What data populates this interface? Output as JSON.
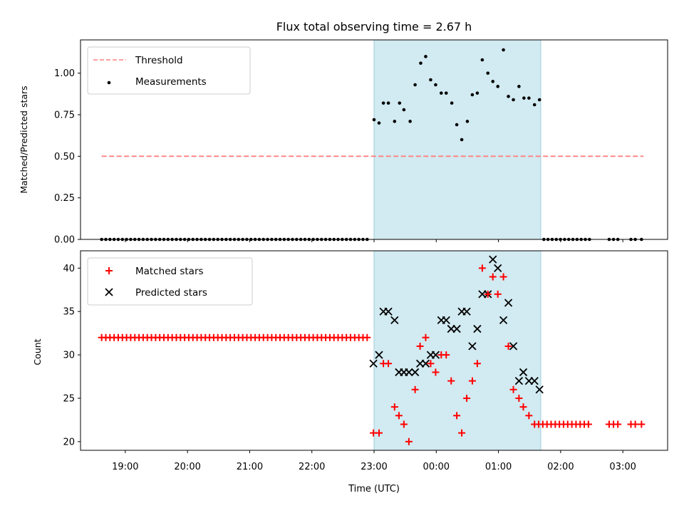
{
  "chart_data": [
    {
      "type": "scatter",
      "title": "Flux total observing time = 2.67 h",
      "ylabel": "Matched/Predicted stars",
      "xlabel": "",
      "x_unit": "hours since 18:00 UTC",
      "xlim": [
        0.28,
        9.72
      ],
      "ylim": [
        0,
        1.2
      ],
      "yticks": [
        0,
        0.25,
        0.5,
        0.75,
        1.0
      ],
      "ytick_labels": [
        "0.00",
        "0.25",
        "0.50",
        "0.75",
        "1.00"
      ],
      "shaded_region": {
        "x_start": 5.0,
        "x_end": 7.68,
        "color": "#add8e6"
      },
      "legend": {
        "placement": "top-left",
        "entries": [
          "Threshold",
          "Measurements"
        ]
      },
      "threshold": {
        "name": "Threshold",
        "y": 0.5,
        "x_start": 0.62,
        "x_end": 9.33,
        "color": "#ff8080"
      },
      "series": [
        {
          "name": "Measurements",
          "marker": "dot",
          "color": "#000000",
          "zero_runs": [
            {
              "x_start": 0.62,
              "x_end": 4.95,
              "step": 0.0667
            },
            {
              "x_start": 7.73,
              "x_end": 8.5,
              "step": 0.0667
            }
          ],
          "x_zero_extra": [
            8.78,
            8.85,
            8.92,
            9.13,
            9.2,
            9.3
          ],
          "points": [
            [
              5.0,
              0.72
            ],
            [
              5.08,
              0.7
            ],
            [
              5.15,
              0.82
            ],
            [
              5.23,
              0.82
            ],
            [
              5.33,
              0.71
            ],
            [
              5.41,
              0.82
            ],
            [
              5.48,
              0.78
            ],
            [
              5.58,
              0.71
            ],
            [
              5.66,
              0.93
            ],
            [
              5.75,
              1.06
            ],
            [
              5.83,
              1.1
            ],
            [
              5.91,
              0.96
            ],
            [
              5.99,
              0.93
            ],
            [
              6.08,
              0.88
            ],
            [
              6.16,
              0.88
            ],
            [
              6.25,
              0.82
            ],
            [
              6.33,
              0.69
            ],
            [
              6.41,
              0.6
            ],
            [
              6.5,
              0.71
            ],
            [
              6.58,
              0.87
            ],
            [
              6.66,
              0.88
            ],
            [
              6.74,
              1.08
            ],
            [
              6.83,
              1.0
            ],
            [
              6.91,
              0.95
            ],
            [
              6.99,
              0.92
            ],
            [
              7.08,
              1.14
            ],
            [
              7.16,
              0.86
            ],
            [
              7.24,
              0.84
            ],
            [
              7.33,
              0.92
            ],
            [
              7.41,
              0.85
            ],
            [
              7.49,
              0.85
            ],
            [
              7.58,
              0.81
            ],
            [
              7.66,
              0.84
            ]
          ]
        }
      ]
    },
    {
      "type": "scatter",
      "title": "",
      "ylabel": "Count",
      "xlabel": "Time (UTC)",
      "x_unit": "hours since 18:00 UTC",
      "xlim": [
        0.28,
        9.72
      ],
      "ylim": [
        19,
        42
      ],
      "yticks": [
        20,
        25,
        30,
        35,
        40
      ],
      "xticks": [
        1,
        2,
        3,
        4,
        5,
        6,
        7,
        8,
        9
      ],
      "xtick_labels": [
        "19:00",
        "20:00",
        "21:00",
        "22:00",
        "23:00",
        "00:00",
        "01:00",
        "02:00",
        "03:00"
      ],
      "shaded_region": {
        "x_start": 5.0,
        "x_end": 7.68,
        "color": "#add8e6"
      },
      "legend": {
        "placement": "top-left",
        "entries": [
          "Matched stars",
          "Predicted stars"
        ]
      },
      "series": [
        {
          "name": "Matched stars",
          "marker": "plus",
          "color": "#ff0000",
          "constant_runs": [
            {
              "x_start": 0.62,
              "x_end": 4.9,
              "step": 0.0667,
              "y": 32
            },
            {
              "x_start": 7.58,
              "x_end": 8.5,
              "step": 0.0667,
              "y": 22
            }
          ],
          "points": [
            [
              8.78,
              22
            ],
            [
              8.85,
              22
            ],
            [
              8.92,
              22
            ],
            [
              9.13,
              22
            ],
            [
              9.2,
              22
            ],
            [
              9.3,
              22
            ],
            [
              4.99,
              21
            ],
            [
              5.08,
              21
            ],
            [
              5.15,
              29
            ],
            [
              5.23,
              29
            ],
            [
              5.33,
              24
            ],
            [
              5.4,
              23
            ],
            [
              5.48,
              22
            ],
            [
              5.56,
              20
            ],
            [
              5.66,
              26
            ],
            [
              5.74,
              31
            ],
            [
              5.83,
              32
            ],
            [
              5.91,
              29
            ],
            [
              5.99,
              28
            ],
            [
              6.08,
              30
            ],
            [
              6.16,
              30
            ],
            [
              6.24,
              27
            ],
            [
              6.33,
              23
            ],
            [
              6.41,
              21
            ],
            [
              6.49,
              25
            ],
            [
              6.58,
              27
            ],
            [
              6.66,
              29
            ],
            [
              6.74,
              40
            ],
            [
              6.83,
              37
            ],
            [
              6.91,
              39
            ],
            [
              6.99,
              37
            ],
            [
              7.08,
              39
            ],
            [
              7.16,
              31
            ],
            [
              7.24,
              26
            ],
            [
              7.33,
              25
            ],
            [
              7.4,
              24
            ],
            [
              7.49,
              23
            ]
          ]
        },
        {
          "name": "Predicted stars",
          "marker": "x",
          "color": "#000000",
          "points": [
            [
              4.99,
              29
            ],
            [
              5.08,
              30
            ],
            [
              5.15,
              35
            ],
            [
              5.23,
              35
            ],
            [
              5.33,
              34
            ],
            [
              5.4,
              28
            ],
            [
              5.48,
              28
            ],
            [
              5.56,
              28
            ],
            [
              5.66,
              28
            ],
            [
              5.74,
              29
            ],
            [
              5.83,
              29
            ],
            [
              5.91,
              30
            ],
            [
              5.99,
              30
            ],
            [
              6.08,
              34
            ],
            [
              6.16,
              34
            ],
            [
              6.24,
              33
            ],
            [
              6.33,
              33
            ],
            [
              6.41,
              35
            ],
            [
              6.49,
              35
            ],
            [
              6.58,
              31
            ],
            [
              6.66,
              33
            ],
            [
              6.74,
              37
            ],
            [
              6.83,
              37
            ],
            [
              6.91,
              41
            ],
            [
              6.99,
              40
            ],
            [
              7.08,
              34
            ],
            [
              7.16,
              36
            ],
            [
              7.24,
              31
            ],
            [
              7.33,
              27
            ],
            [
              7.4,
              28
            ],
            [
              7.49,
              27
            ],
            [
              7.58,
              27
            ],
            [
              7.66,
              26
            ]
          ]
        }
      ]
    }
  ]
}
